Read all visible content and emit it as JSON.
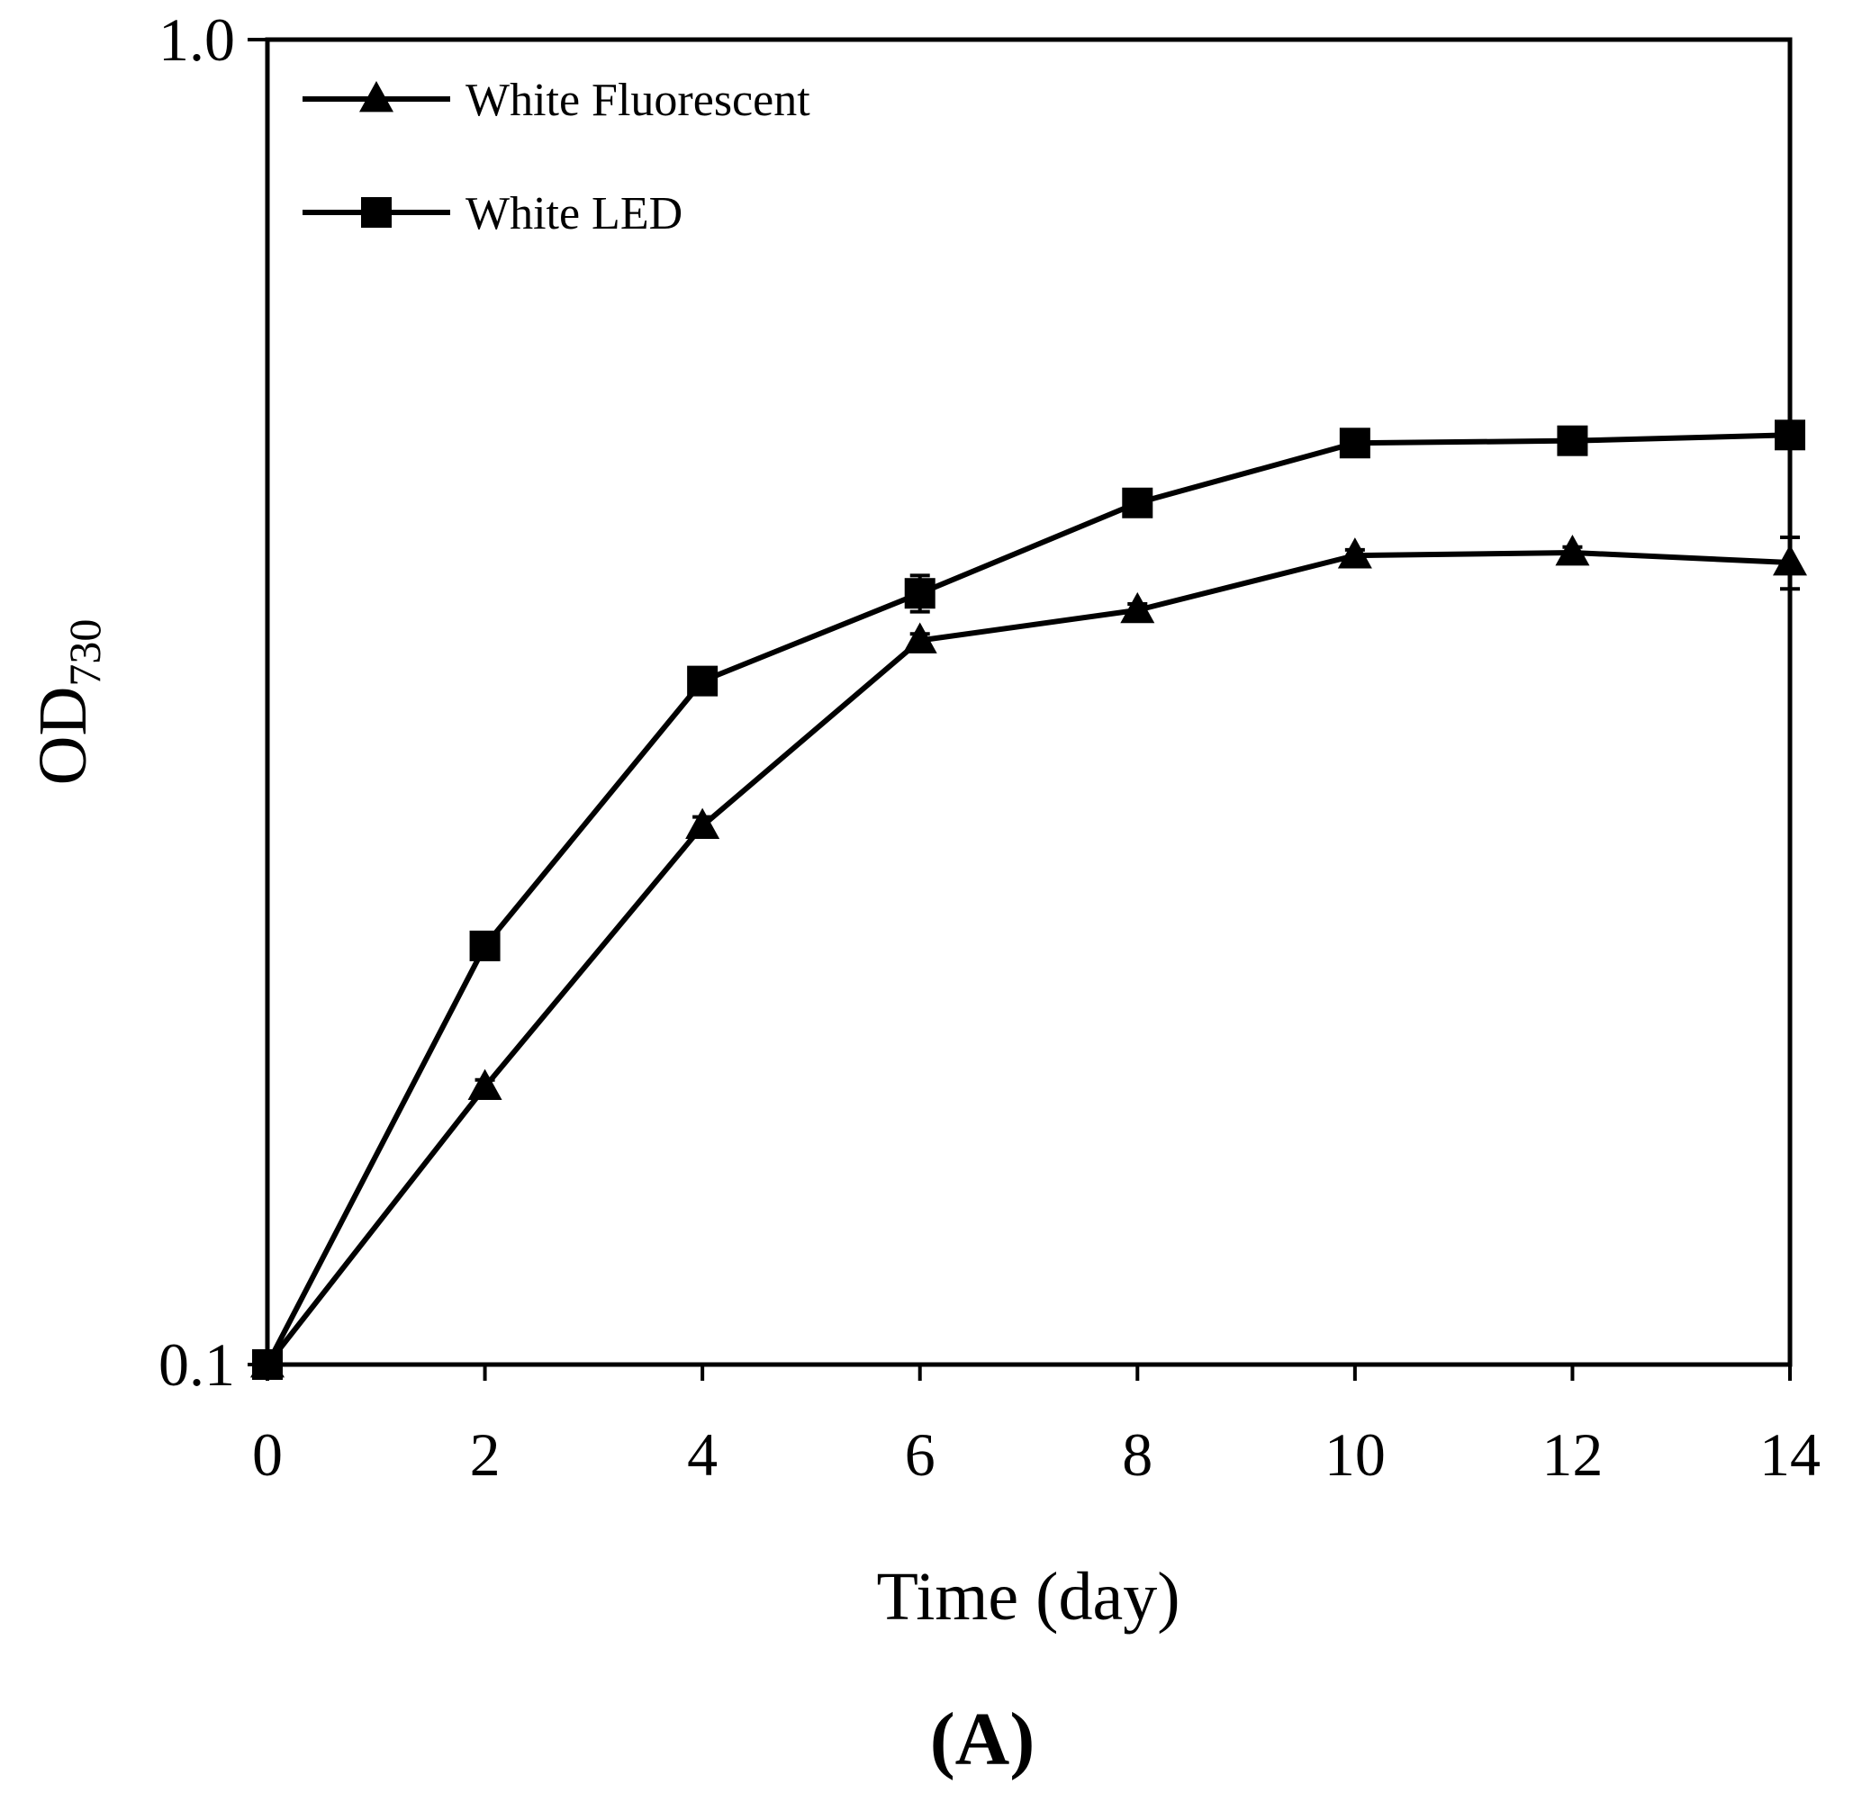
{
  "chart_data": {
    "type": "line",
    "title": "",
    "panel_label": "(A)",
    "xlabel": "Time (day)",
    "ylabel_main": "OD",
    "ylabel_sub": "730",
    "xlim": [
      0,
      14
    ],
    "ylim": [
      0.1,
      1.0
    ],
    "yscale": "log",
    "x_ticks": [
      0,
      2,
      4,
      6,
      8,
      10,
      12,
      14
    ],
    "x_tick_labels": [
      "0",
      "2",
      "4",
      "6",
      "8",
      "10",
      "12",
      "14"
    ],
    "y_ticks": [
      0.1,
      1.0
    ],
    "y_tick_labels": [
      "0.1",
      "1.0"
    ],
    "grid": false,
    "legend_position": "top-left",
    "x": [
      0,
      2,
      4,
      6,
      8,
      10,
      12,
      14
    ],
    "series": [
      {
        "name": "White Fluorescent",
        "marker": "triangle",
        "values": [
          0.1,
          0.162,
          0.255,
          0.352,
          0.371,
          0.408,
          0.41,
          0.403
        ],
        "errors": [
          0.0,
          0.002,
          0.004,
          0.004,
          0.004,
          0.004,
          0.004,
          0.018
        ]
      },
      {
        "name": "White LED",
        "marker": "square",
        "values": [
          0.1,
          0.207,
          0.328,
          0.382,
          0.447,
          0.496,
          0.498,
          0.503
        ],
        "errors": [
          0.0,
          0.003,
          0.003,
          0.012,
          0.004,
          0.004,
          0.004,
          0.004
        ]
      }
    ],
    "colors": {
      "line": "#000000",
      "background": "#ffffff"
    }
  }
}
